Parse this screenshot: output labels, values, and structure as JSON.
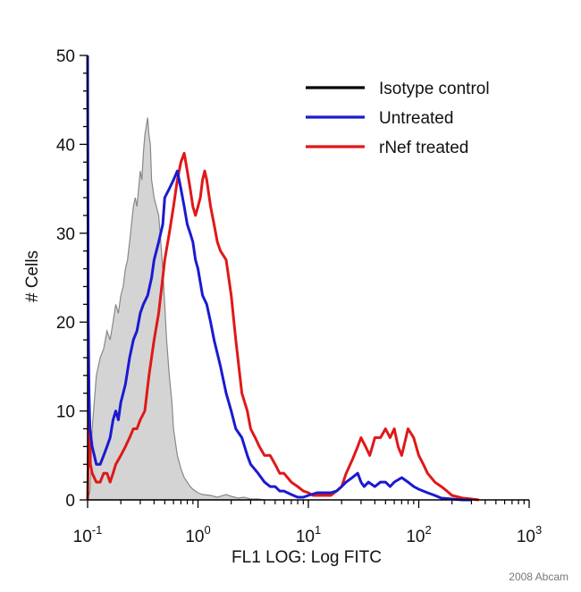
{
  "chart_data": {
    "type": "line",
    "title": "",
    "xlabel": "FL1 LOG: Log FITC",
    "ylabel": "# Cells",
    "x_scale": "log",
    "xlim": [
      0.1,
      1000
    ],
    "ylim": [
      0,
      50
    ],
    "y_ticks": [
      0,
      10,
      20,
      30,
      40,
      50
    ],
    "y_tick_labels": [
      "0",
      "10",
      "20",
      "30",
      "40",
      "50"
    ],
    "x_ticks": [
      0.1,
      1,
      10,
      100,
      1000
    ],
    "x_tick_labels": [
      {
        "base": "10",
        "exp": "-1"
      },
      {
        "base": "10",
        "exp": "0"
      },
      {
        "base": "10",
        "exp": "1"
      },
      {
        "base": "10",
        "exp": "2"
      },
      {
        "base": "10",
        "exp": "3"
      }
    ],
    "grid": false,
    "legend_position": "top-right",
    "credit": "2008 Abcam",
    "series": [
      {
        "name": "Isotype control",
        "color": "#000000",
        "fill": "#d4d4d4",
        "outline": "#888888",
        "x": [
          0.1,
          0.105,
          0.11,
          0.12,
          0.13,
          0.14,
          0.15,
          0.16,
          0.17,
          0.18,
          0.19,
          0.2,
          0.21,
          0.22,
          0.23,
          0.24,
          0.25,
          0.26,
          0.27,
          0.28,
          0.29,
          0.3,
          0.31,
          0.32,
          0.33,
          0.34,
          0.35,
          0.36,
          0.37,
          0.38,
          0.4,
          0.42,
          0.44,
          0.46,
          0.48,
          0.5,
          0.52,
          0.55,
          0.58,
          0.6,
          0.65,
          0.7,
          0.75,
          0.8,
          0.85,
          0.9,
          1.0,
          1.1,
          1.3,
          1.5,
          1.8,
          2.0,
          2.3,
          2.6,
          3.0,
          3.5,
          4.0
        ],
        "y": [
          0,
          1,
          8,
          14,
          16,
          17,
          19,
          18,
          20,
          22,
          21,
          23,
          24,
          26,
          27,
          29,
          31,
          33,
          34,
          33,
          35,
          37,
          36,
          39,
          41,
          42,
          43,
          41,
          40,
          36,
          34,
          33,
          32,
          29,
          26,
          22,
          18,
          14,
          11,
          8,
          5,
          3.5,
          2.5,
          2,
          1.5,
          1.2,
          0.8,
          0.6,
          0.5,
          0.3,
          0.6,
          0.4,
          0.2,
          0.3,
          0.1,
          0.1,
          0
        ]
      },
      {
        "name": "Untreated",
        "color": "#1a1ad2",
        "x": [
          0.1,
          0.1015,
          0.103,
          0.105,
          0.11,
          0.115,
          0.12,
          0.13,
          0.14,
          0.15,
          0.16,
          0.17,
          0.18,
          0.19,
          0.2,
          0.21,
          0.22,
          0.24,
          0.26,
          0.28,
          0.3,
          0.32,
          0.35,
          0.38,
          0.4,
          0.44,
          0.48,
          0.5,
          0.55,
          0.6,
          0.65,
          0.7,
          0.75,
          0.8,
          0.85,
          0.9,
          0.95,
          1.0,
          1.1,
          1.2,
          1.3,
          1.4,
          1.6,
          1.8,
          2.0,
          2.2,
          2.5,
          2.8,
          3.0,
          3.5,
          4.0,
          4.5,
          5.0,
          5.5,
          6.0,
          7.0,
          8.0,
          9.0,
          10,
          12,
          14,
          16,
          18,
          20,
          22,
          25,
          28,
          30,
          32,
          35,
          40,
          45,
          50,
          55,
          60,
          70,
          80,
          90,
          100,
          110,
          120,
          140,
          160,
          200,
          250,
          300
        ],
        "y": [
          50,
          20,
          12,
          8,
          6,
          5,
          4,
          4,
          5,
          6,
          7,
          9,
          10,
          9,
          11,
          12,
          13,
          16,
          18,
          19,
          21,
          22,
          23,
          25,
          27,
          29,
          31,
          34,
          35,
          36,
          37,
          35,
          33,
          31,
          30,
          29,
          27,
          26,
          23,
          22,
          20,
          18,
          15,
          12,
          10,
          8,
          7,
          5,
          4,
          3,
          2,
          1.5,
          1.5,
          1,
          1,
          0.6,
          0.3,
          0.3,
          0.5,
          0.8,
          0.8,
          0.8,
          1,
          1.5,
          2,
          2.5,
          3,
          2,
          1.5,
          2,
          1.5,
          2,
          2,
          1.5,
          2,
          2.5,
          2,
          1.5,
          1.2,
          1,
          0.8,
          0.5,
          0.2,
          0.1,
          0,
          0
        ]
      },
      {
        "name": "rNef treated",
        "color": "#e01818",
        "x": [
          0.1,
          0.103,
          0.106,
          0.11,
          0.12,
          0.13,
          0.14,
          0.15,
          0.16,
          0.17,
          0.18,
          0.2,
          0.22,
          0.24,
          0.26,
          0.28,
          0.3,
          0.33,
          0.36,
          0.4,
          0.44,
          0.48,
          0.5,
          0.55,
          0.6,
          0.65,
          0.7,
          0.75,
          0.8,
          0.85,
          0.9,
          0.95,
          1.0,
          1.05,
          1.1,
          1.15,
          1.2,
          1.3,
          1.4,
          1.5,
          1.6,
          1.8,
          2.0,
          2.2,
          2.5,
          2.8,
          3.0,
          3.3,
          3.6,
          4.0,
          4.5,
          5.0,
          5.5,
          6.0,
          7.0,
          8.0,
          9.0,
          10,
          11,
          12,
          14,
          16,
          18,
          20,
          22,
          25,
          28,
          30,
          33,
          36,
          40,
          45,
          50,
          55,
          60,
          65,
          70,
          80,
          90,
          100,
          110,
          120,
          140,
          160,
          180,
          200,
          250,
          300,
          350
        ],
        "y": [
          0,
          10,
          4,
          3,
          2,
          2,
          3,
          3,
          2,
          3,
          4,
          5,
          6,
          7,
          8,
          8,
          9,
          10,
          14,
          18,
          21,
          25,
          27,
          30,
          33,
          36,
          38,
          39,
          37,
          35,
          33,
          32,
          33,
          34,
          36,
          37,
          36,
          33,
          31,
          29,
          28,
          27,
          23,
          18,
          12,
          10,
          8,
          7,
          6,
          5,
          5,
          4,
          3,
          3,
          2,
          1.5,
          1,
          0.8,
          0.5,
          0.5,
          0.5,
          0.5,
          1,
          1.5,
          3,
          4.5,
          6,
          7,
          6,
          5,
          7,
          7,
          8,
          7,
          8,
          6,
          5,
          8,
          7,
          5,
          4,
          3,
          2,
          1.5,
          1,
          0.5,
          0.2,
          0.1,
          0
        ]
      }
    ]
  }
}
